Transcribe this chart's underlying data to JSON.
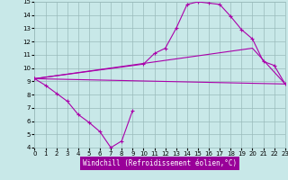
{
  "xlabel": "Windchill (Refroidissement éolien,°C)",
  "xlim": [
    0,
    23
  ],
  "ylim": [
    4,
    15
  ],
  "yticks": [
    4,
    5,
    6,
    7,
    8,
    9,
    10,
    11,
    12,
    13,
    14,
    15
  ],
  "xticks": [
    0,
    1,
    2,
    3,
    4,
    5,
    6,
    7,
    8,
    9,
    10,
    11,
    12,
    13,
    14,
    15,
    16,
    17,
    18,
    19,
    20,
    21,
    22,
    23
  ],
  "bg_color": "#c8e8e8",
  "grid_color": "#99bbbb",
  "line_color": "#aa00aa",
  "xlabel_bg": "#990099",
  "series": [
    {
      "x": [
        0,
        1,
        2,
        3,
        4,
        5,
        6,
        7,
        8,
        9
      ],
      "y": [
        9.2,
        8.7,
        8.1,
        7.5,
        6.5,
        5.9,
        5.2,
        4.0,
        4.5,
        6.8
      ],
      "marker": "+"
    },
    {
      "x": [
        0,
        10,
        11,
        12,
        13,
        14,
        15,
        16,
        17,
        18,
        19,
        20,
        21,
        22,
        23
      ],
      "y": [
        9.2,
        10.3,
        11.1,
        11.5,
        13.0,
        14.8,
        15.0,
        14.9,
        14.8,
        13.9,
        12.9,
        12.2,
        10.5,
        10.2,
        8.8
      ],
      "marker": "+"
    },
    {
      "x": [
        0,
        20,
        23
      ],
      "y": [
        9.2,
        11.5,
        8.8
      ],
      "marker": null
    },
    {
      "x": [
        0,
        23
      ],
      "y": [
        9.2,
        8.8
      ],
      "marker": null
    }
  ]
}
